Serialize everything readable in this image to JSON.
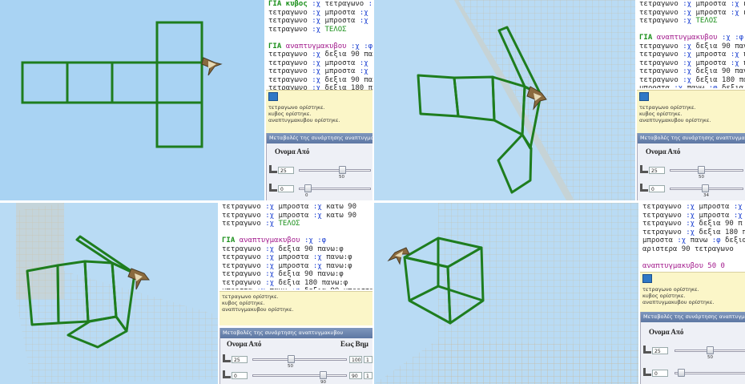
{
  "colors": {
    "viewport_bg": "#a9d3f3",
    "wire_green": "#1e7d1e",
    "keyword_green": "#1a8f1a",
    "command_purple": "#a21a8c",
    "variable_blue": "#1a3fd1",
    "message_bg": "#fbf6c8",
    "slider_title_bg": "#6a83ad"
  },
  "icons": {
    "turtle": "turtle-sprite-icon",
    "up": "up-arrow-icon"
  },
  "panel_tl": {
    "code_lines": [
      [
        {
          "t": "ΓΙΑ κυβος ",
          "c": "kw"
        },
        {
          "t": ":χ ",
          "c": "var"
        },
        {
          "t": "τετραγωνο ",
          "c": ""
        },
        {
          "t": ":χ",
          "c": "var"
        }
      ],
      [
        {
          "t": "τετραγωνο ",
          "c": ""
        },
        {
          "t": ":χ ",
          "c": "var"
        },
        {
          "t": "μπροστα ",
          "c": ""
        },
        {
          "t": ":χ ",
          "c": "var"
        },
        {
          "t": "κ",
          "c": ""
        }
      ],
      [
        {
          "t": "τετραγωνο ",
          "c": ""
        },
        {
          "t": ":χ ",
          "c": "var"
        },
        {
          "t": "μπροστα ",
          "c": ""
        },
        {
          "t": ":χ ",
          "c": "var"
        },
        {
          "t": "κ",
          "c": ""
        }
      ],
      [
        {
          "t": "τετραγωνο ",
          "c": ""
        },
        {
          "t": ":χ ",
          "c": "var"
        },
        {
          "t": "ΤΕΛΟΣ",
          "c": "endkw"
        }
      ],
      [
        {
          "t": "",
          "c": ""
        }
      ],
      [
        {
          "t": "ΓΙΑ ",
          "c": "kw"
        },
        {
          "t": "αναπτυγμακυβου ",
          "c": "cmd"
        },
        {
          "t": ":χ :φ",
          "c": "var"
        }
      ],
      [
        {
          "t": "τετραγωνο ",
          "c": ""
        },
        {
          "t": ":χ ",
          "c": "var"
        },
        {
          "t": "δεξια 90 πανω",
          "c": ""
        }
      ],
      [
        {
          "t": "τετραγωνο ",
          "c": ""
        },
        {
          "t": ":χ ",
          "c": "var"
        },
        {
          "t": "μπροστα ",
          "c": ""
        },
        {
          "t": ":χ ",
          "c": "var"
        },
        {
          "t": "π",
          "c": ""
        }
      ],
      [
        {
          "t": "τετραγωνο ",
          "c": ""
        },
        {
          "t": ":χ ",
          "c": "var"
        },
        {
          "t": "μπροστα ",
          "c": ""
        },
        {
          "t": ":χ ",
          "c": "var"
        },
        {
          "t": "π",
          "c": ""
        }
      ],
      [
        {
          "t": "τετραγωνο ",
          "c": ""
        },
        {
          "t": ":χ ",
          "c": "var"
        },
        {
          "t": "δεξια 90 πα",
          "c": ""
        }
      ],
      [
        {
          "t": "τετραγωνο ",
          "c": ""
        },
        {
          "t": ":χ ",
          "c": "var"
        },
        {
          "t": "δεξια 180 π",
          "c": ""
        }
      ],
      [
        {
          "t": "μπροστα ",
          "c": ""
        },
        {
          "t": ":χ ",
          "c": "var"
        },
        {
          "t": "πανω ",
          "c": ""
        },
        {
          "t": ":φ ",
          "c": "var"
        },
        {
          "t": "δεξια",
          "c": ""
        }
      ],
      [
        {
          "t": "αριστερα 90 τετραγωνο",
          "c": ""
        }
      ]
    ],
    "messages": [
      "τετραγωνο ορίστηκε.",
      "κυβος ορίστηκε.",
      "αναπτυγμακυβου ορίστηκε."
    ],
    "slider_title": "Μεταβολές της συνάρτησης αναπτυγμακυβ",
    "header_name": "Ονομα Από",
    "sliders": [
      {
        "box": "25",
        "val": "50"
      },
      {
        "box": "0",
        "val": "0"
      }
    ]
  },
  "panel_tr": {
    "code_lines": [
      [
        {
          "t": "τετραγωνο ",
          "c": ""
        },
        {
          "t": ":χ ",
          "c": "var"
        },
        {
          "t": "μπροστα ",
          "c": ""
        },
        {
          "t": ":χ ",
          "c": "var"
        },
        {
          "t": "κατω",
          "c": ""
        }
      ],
      [
        {
          "t": "τετραγωνο ",
          "c": ""
        },
        {
          "t": ":χ ",
          "c": "var"
        },
        {
          "t": "μπροστα ",
          "c": ""
        },
        {
          "t": ":χ ",
          "c": "var"
        },
        {
          "t": "κατω",
          "c": ""
        }
      ],
      [
        {
          "t": "τετραγωνο ",
          "c": ""
        },
        {
          "t": ":χ ",
          "c": "var"
        },
        {
          "t": "ΤΕΛΟΣ",
          "c": "endkw"
        }
      ],
      [
        {
          "t": "",
          "c": ""
        }
      ],
      [
        {
          "t": "ΓΙΑ ",
          "c": "kw"
        },
        {
          "t": "αναπτυγμακυβου ",
          "c": "cmd"
        },
        {
          "t": ":χ :φ",
          "c": "var"
        }
      ],
      [
        {
          "t": "τετραγωνο ",
          "c": ""
        },
        {
          "t": ":χ ",
          "c": "var"
        },
        {
          "t": "δεξια 90 πανω",
          "c": ""
        }
      ],
      [
        {
          "t": "τετραγωνο ",
          "c": ""
        },
        {
          "t": ":χ ",
          "c": "var"
        },
        {
          "t": "μπροστα ",
          "c": ""
        },
        {
          "t": ":χ ",
          "c": "var"
        },
        {
          "t": "πανω",
          "c": ""
        }
      ],
      [
        {
          "t": "τετραγωνο ",
          "c": ""
        },
        {
          "t": ":χ ",
          "c": "var"
        },
        {
          "t": "μπροστα ",
          "c": ""
        },
        {
          "t": ":χ ",
          "c": "var"
        },
        {
          "t": "πανω",
          "c": ""
        }
      ],
      [
        {
          "t": "τετραγωνο ",
          "c": ""
        },
        {
          "t": ":χ ",
          "c": "var"
        },
        {
          "t": "δεξια 90 πανω",
          "c": ""
        }
      ],
      [
        {
          "t": "τετραγωνο ",
          "c": ""
        },
        {
          "t": ":χ ",
          "c": "var"
        },
        {
          "t": "δεξια 180 πανω",
          "c": ""
        }
      ],
      [
        {
          "t": "μπροστα ",
          "c": ""
        },
        {
          "t": ":χ ",
          "c": "var"
        },
        {
          "t": "πανω ",
          "c": ""
        },
        {
          "t": ":φ ",
          "c": "var"
        },
        {
          "t": "δεξια 90",
          "c": ""
        }
      ],
      [
        {
          "t": "αριστερα 90 τετραγωνο",
          "c": ""
        }
      ],
      [
        {
          "t": "",
          "c": ""
        }
      ],
      [
        {
          "t": "αναπτυγμακυβου 50 0",
          "c": "cmd"
        }
      ]
    ],
    "messages": [
      "τετραγωνο ορίστηκε.",
      "κυβος ορίστηκε.",
      "αναπτυγμακυβου ορίστηκε."
    ],
    "slider_title": "Μεταβολές της συνάρτησης αναπτυγμακυβ",
    "header_name": "Ονομα Από",
    "sliders": [
      {
        "box": "25",
        "val": "50"
      },
      {
        "box": "0",
        "val": "34"
      }
    ]
  },
  "panel_bl": {
    "code_lines": [
      [
        {
          "t": "τετραγωνο ",
          "c": ""
        },
        {
          "t": ":χ ",
          "c": "var"
        },
        {
          "t": "μπροστα ",
          "c": ""
        },
        {
          "t": ":χ ",
          "c": "var"
        },
        {
          "t": "κατω 90",
          "c": ""
        }
      ],
      [
        {
          "t": "τετραγωνο ",
          "c": ""
        },
        {
          "t": ":χ ",
          "c": "var"
        },
        {
          "t": "μπροστα ",
          "c": ""
        },
        {
          "t": ":χ ",
          "c": "var"
        },
        {
          "t": "κατω 90",
          "c": ""
        }
      ],
      [
        {
          "t": "τετραγωνο ",
          "c": ""
        },
        {
          "t": ":χ ",
          "c": "var"
        },
        {
          "t": "ΤΕΛΟΣ",
          "c": "endkw"
        }
      ],
      [
        {
          "t": "",
          "c": ""
        }
      ],
      [
        {
          "t": "ΓΙΑ ",
          "c": "kw"
        },
        {
          "t": "αναπτυγμακυβου ",
          "c": "cmd"
        },
        {
          "t": ":χ :φ",
          "c": "var"
        }
      ],
      [
        {
          "t": "τετραγωνο ",
          "c": ""
        },
        {
          "t": ":χ ",
          "c": "var"
        },
        {
          "t": "δεξια 90 πανω:φ",
          "c": ""
        }
      ],
      [
        {
          "t": "τετραγωνο ",
          "c": ""
        },
        {
          "t": ":χ ",
          "c": "var"
        },
        {
          "t": "μπροστα ",
          "c": ""
        },
        {
          "t": ":χ ",
          "c": "var"
        },
        {
          "t": "πανω:φ",
          "c": ""
        }
      ],
      [
        {
          "t": "τετραγωνο ",
          "c": ""
        },
        {
          "t": ":χ ",
          "c": "var"
        },
        {
          "t": "μπροστα ",
          "c": ""
        },
        {
          "t": ":χ ",
          "c": "var"
        },
        {
          "t": "πανω:φ",
          "c": ""
        }
      ],
      [
        {
          "t": "τετραγωνο ",
          "c": ""
        },
        {
          "t": ":χ ",
          "c": "var"
        },
        {
          "t": "δεξια 90 πανω:φ",
          "c": ""
        }
      ],
      [
        {
          "t": "τετραγωνο ",
          "c": ""
        },
        {
          "t": ":χ ",
          "c": "var"
        },
        {
          "t": "δεξια 180 πανω:φ",
          "c": ""
        }
      ],
      [
        {
          "t": "μπροστα ",
          "c": ""
        },
        {
          "t": ":χ ",
          "c": "var"
        },
        {
          "t": "πανω ",
          "c": ""
        },
        {
          "t": ":φ ",
          "c": "var"
        },
        {
          "t": "δεξια 90 μπροστα:χ",
          "c": ""
        }
      ],
      [
        {
          "t": "αριστερα 90 τετραγωνο ",
          "c": ""
        },
        {
          "t": ":χ ",
          "c": "var"
        },
        {
          "t": "ΤΕΛΟΣ",
          "c": "endkw"
        }
      ],
      [
        {
          "t": "",
          "c": ""
        }
      ],
      [
        {
          "t": "αναπτυγμακυβου 50 0",
          "c": "cmd"
        }
      ]
    ],
    "messages": [
      "τετραγωνο ορίστηκε.",
      "κυβος ορίστηκε.",
      "αναπτυγμακυβου ορίστηκε."
    ],
    "slider_title": "Μεταβολές της συνάρτησης αναπτυγμακυβου",
    "header_name": "Ονομα Από",
    "header_to": "Εως Βημ",
    "sliders": [
      {
        "box": "25",
        "val": "50",
        "end": "100",
        "step": "1"
      },
      {
        "box": "0",
        "val": "90",
        "end": "90",
        "step": "1"
      }
    ]
  },
  "panel_br": {
    "code_lines": [
      [
        {
          "t": "τετραγωνο ",
          "c": ""
        },
        {
          "t": ":χ ",
          "c": "var"
        },
        {
          "t": "μπροστα ",
          "c": ""
        },
        {
          "t": ":χ ",
          "c": "var"
        },
        {
          "t": "κ",
          "c": ""
        }
      ],
      [
        {
          "t": "τετραγωνο ",
          "c": ""
        },
        {
          "t": ":χ ",
          "c": "var"
        },
        {
          "t": "μπροστα ",
          "c": ""
        },
        {
          "t": ":χ ",
          "c": "var"
        },
        {
          "t": "π",
          "c": ""
        }
      ],
      [
        {
          "t": "τετραγωνο ",
          "c": ""
        },
        {
          "t": ":χ ",
          "c": "var"
        },
        {
          "t": "δεξια 90 π",
          "c": ""
        }
      ],
      [
        {
          "t": "τετραγωνο ",
          "c": ""
        },
        {
          "t": ":χ ",
          "c": "var"
        },
        {
          "t": "δεξια 180 π",
          "c": ""
        }
      ],
      [
        {
          "t": "μπροστα ",
          "c": ""
        },
        {
          "t": ":χ ",
          "c": "var"
        },
        {
          "t": "πανω ",
          "c": ""
        },
        {
          "t": ":φ ",
          "c": "var"
        },
        {
          "t": "δεξια 9",
          "c": ""
        }
      ],
      [
        {
          "t": "αριστερα 90 τετραγωνο",
          "c": ""
        }
      ],
      [
        {
          "t": "",
          "c": ""
        }
      ],
      [
        {
          "t": "αναπτυγμακυβου 50 0",
          "c": "cmd"
        }
      ]
    ],
    "messages": [
      "τετραγωνο ορίστηκε.",
      "κυβος ορίστηκε.",
      "αναπτυγμακυβου ορίστηκε."
    ],
    "slider_title": "Μεταβολές της συνάρτησης αναπτυγμακυβου",
    "header_name": "Ονομα Από",
    "sliders": [
      {
        "box": "25",
        "val": "50"
      },
      {
        "box": "0",
        "val": ""
      }
    ]
  }
}
